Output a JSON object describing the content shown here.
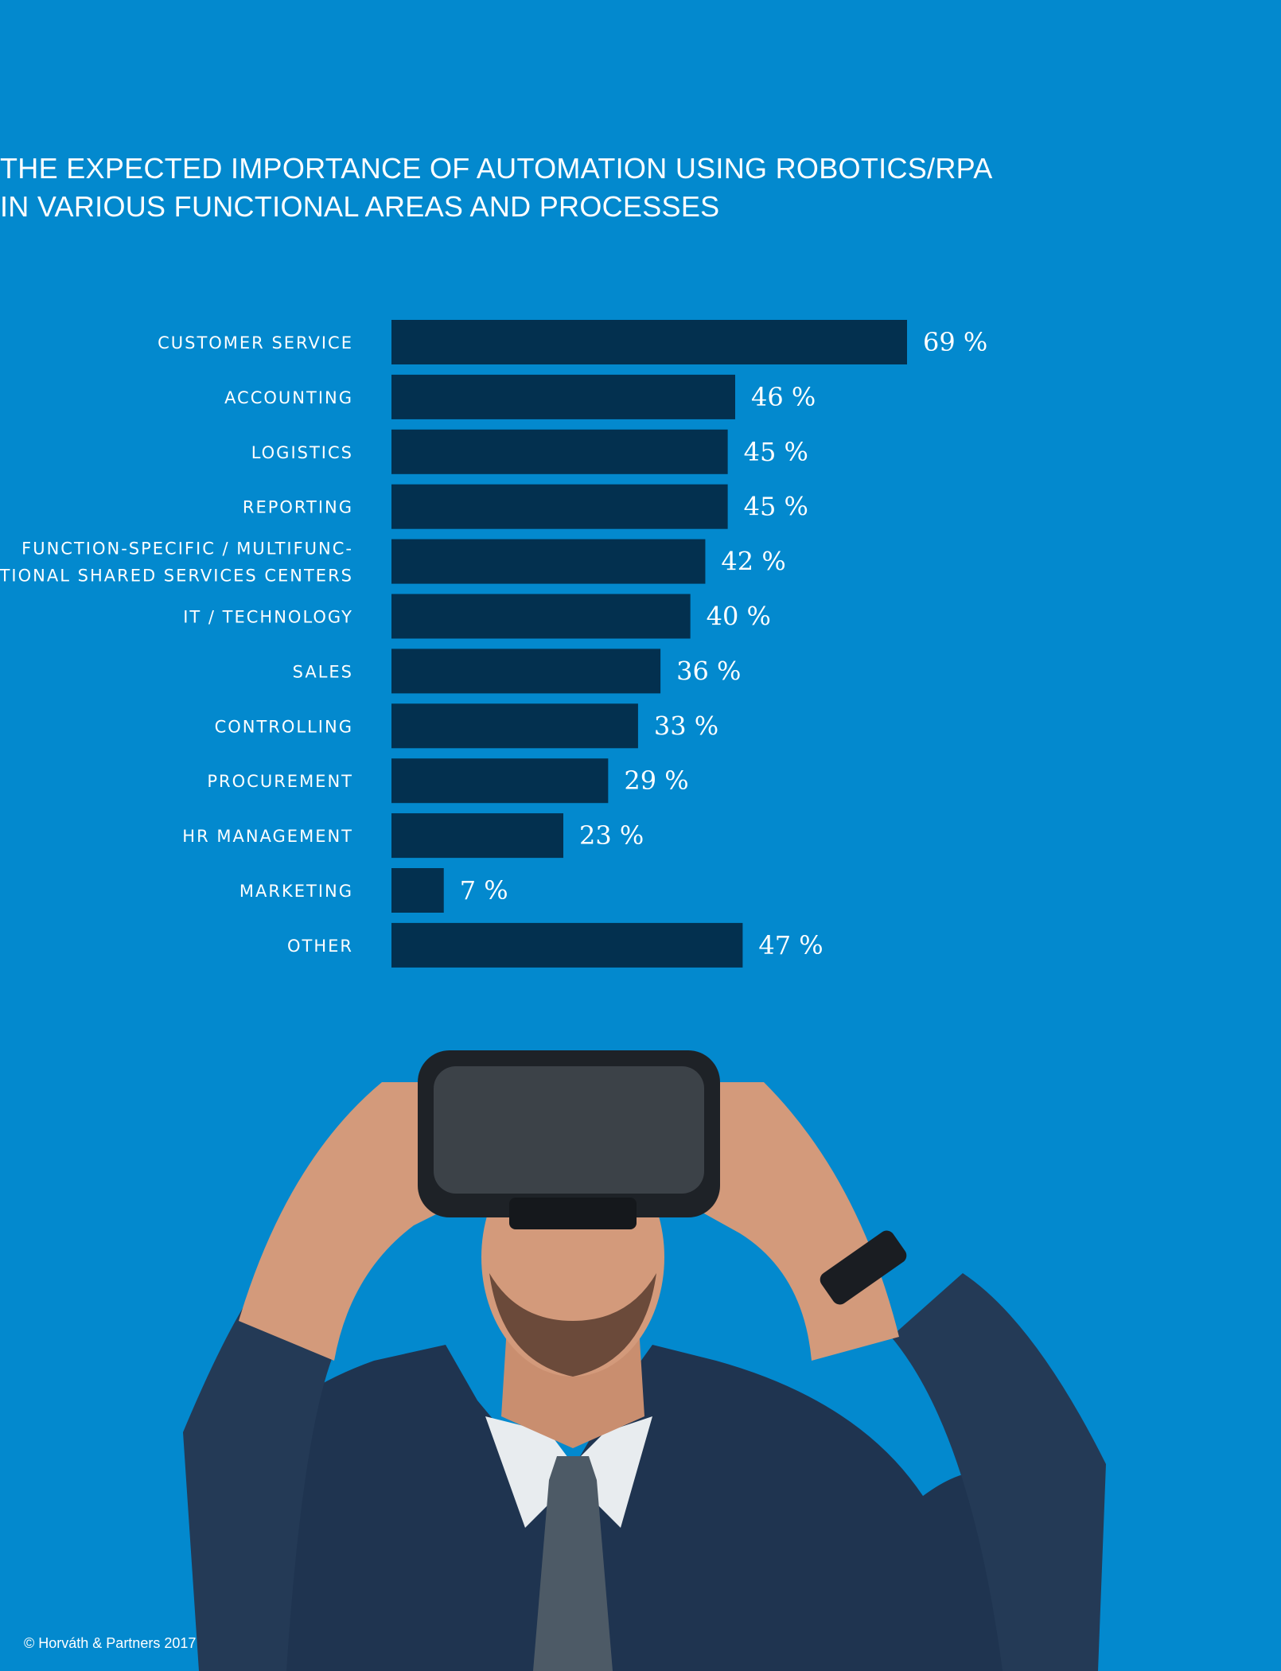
{
  "title": {
    "line1": "THE EXPECTED IMPORTANCE OF AUTOMATION USING ROBOTICS/RPA",
    "line2": "IN VARIOUS FUNCTIONAL AREAS AND PROCESSES"
  },
  "chart_data": {
    "type": "bar",
    "orientation": "horizontal",
    "categories": [
      [
        "CUSTOMER SERVICE"
      ],
      [
        "ACCOUNTING"
      ],
      [
        "LOGISTICS"
      ],
      [
        "REPORTING"
      ],
      [
        "FUNCTION-SPECIFIC / MULTIFUNC-",
        "TIONAL SHARED SERVICES CENTERS"
      ],
      [
        "IT / TECHNOLOGY"
      ],
      [
        "SALES"
      ],
      [
        "CONTROLLING"
      ],
      [
        "PROCUREMENT"
      ],
      [
        "HR MANAGEMENT"
      ],
      [
        "MARKETING"
      ],
      [
        "OTHER"
      ]
    ],
    "values": [
      69,
      46,
      45,
      45,
      42,
      40,
      36,
      33,
      29,
      23,
      7,
      47
    ],
    "value_labels": [
      "69 %",
      "46 %",
      "45 %",
      "45 %",
      "42 %",
      "40 %",
      "36 %",
      "33 %",
      "29 %",
      "23 %",
      "7 %",
      "47 %"
    ],
    "unit": "%",
    "grid": false,
    "bar_color": "#03304f"
  },
  "colors": {
    "background": "#0389ce",
    "bar": "#03304f",
    "text": "#ffffff"
  },
  "footer": {
    "copyright": "© Horváth & Partners 2017"
  }
}
